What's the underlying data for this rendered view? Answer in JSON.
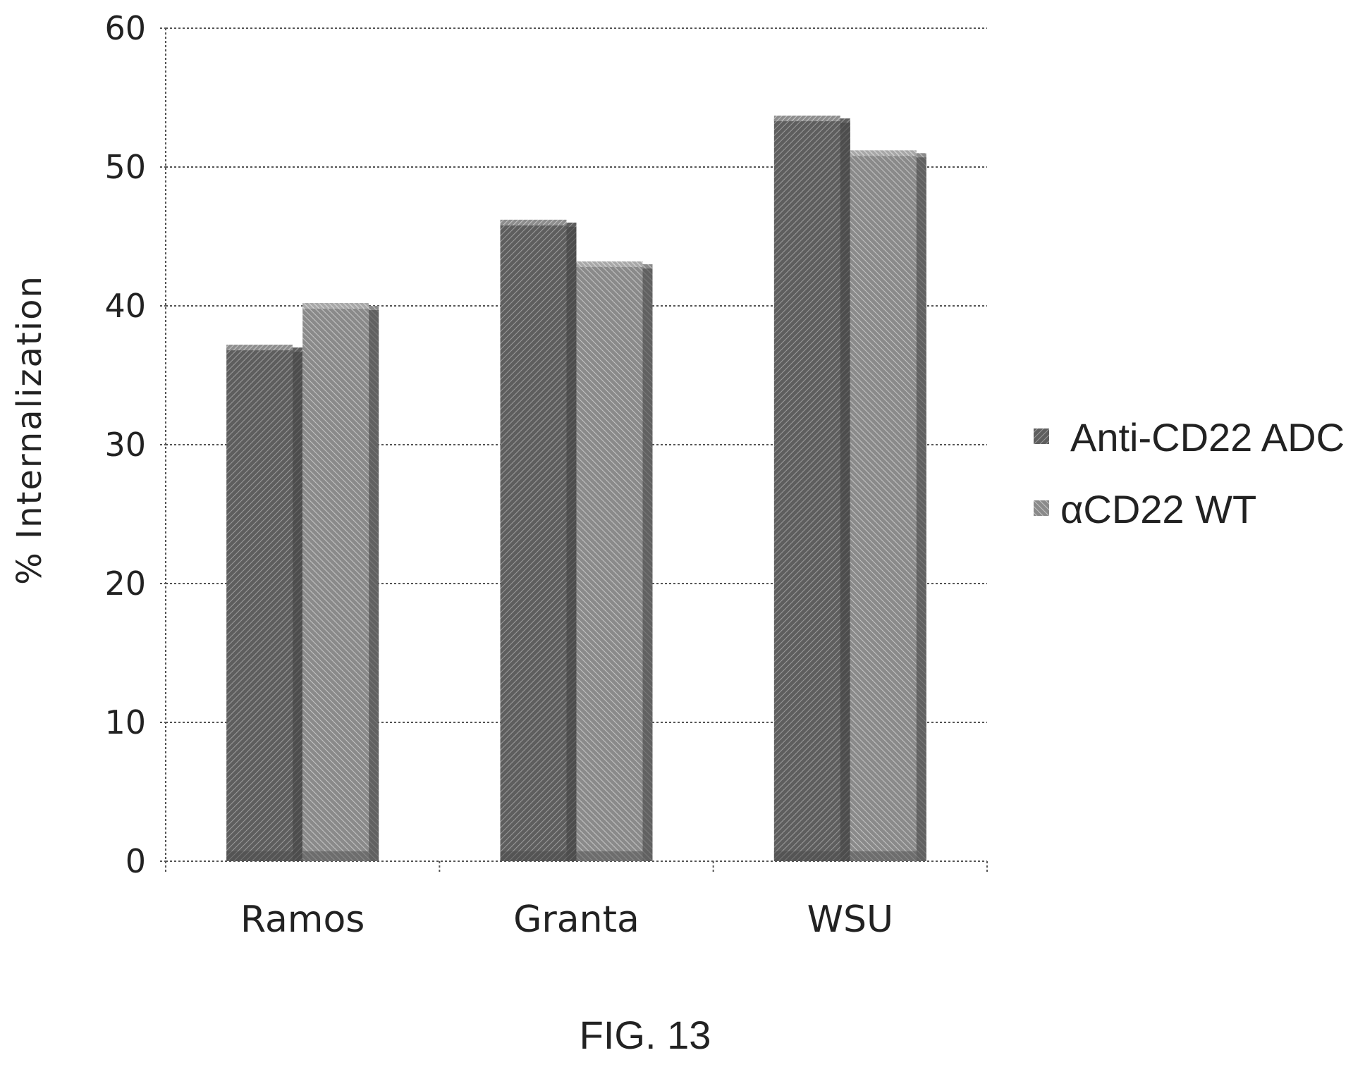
{
  "caption": "FIG. 13",
  "chart_data": {
    "type": "bar",
    "title": "",
    "xlabel": "",
    "ylabel": "% Internalization",
    "ylim": [
      0,
      60
    ],
    "yticks": [
      0,
      10,
      20,
      30,
      40,
      50,
      60
    ],
    "grid": true,
    "legend_position": "right",
    "categories": [
      "Ramos",
      "Granta",
      "WSU"
    ],
    "series": [
      {
        "name": "Anti-CD22 ADC",
        "values": [
          37,
          46,
          53.5
        ],
        "color": "#6e6e6e"
      },
      {
        "name": "αCD22 WT",
        "values": [
          40,
          43,
          51
        ],
        "color": "#9a9a9a"
      }
    ]
  }
}
